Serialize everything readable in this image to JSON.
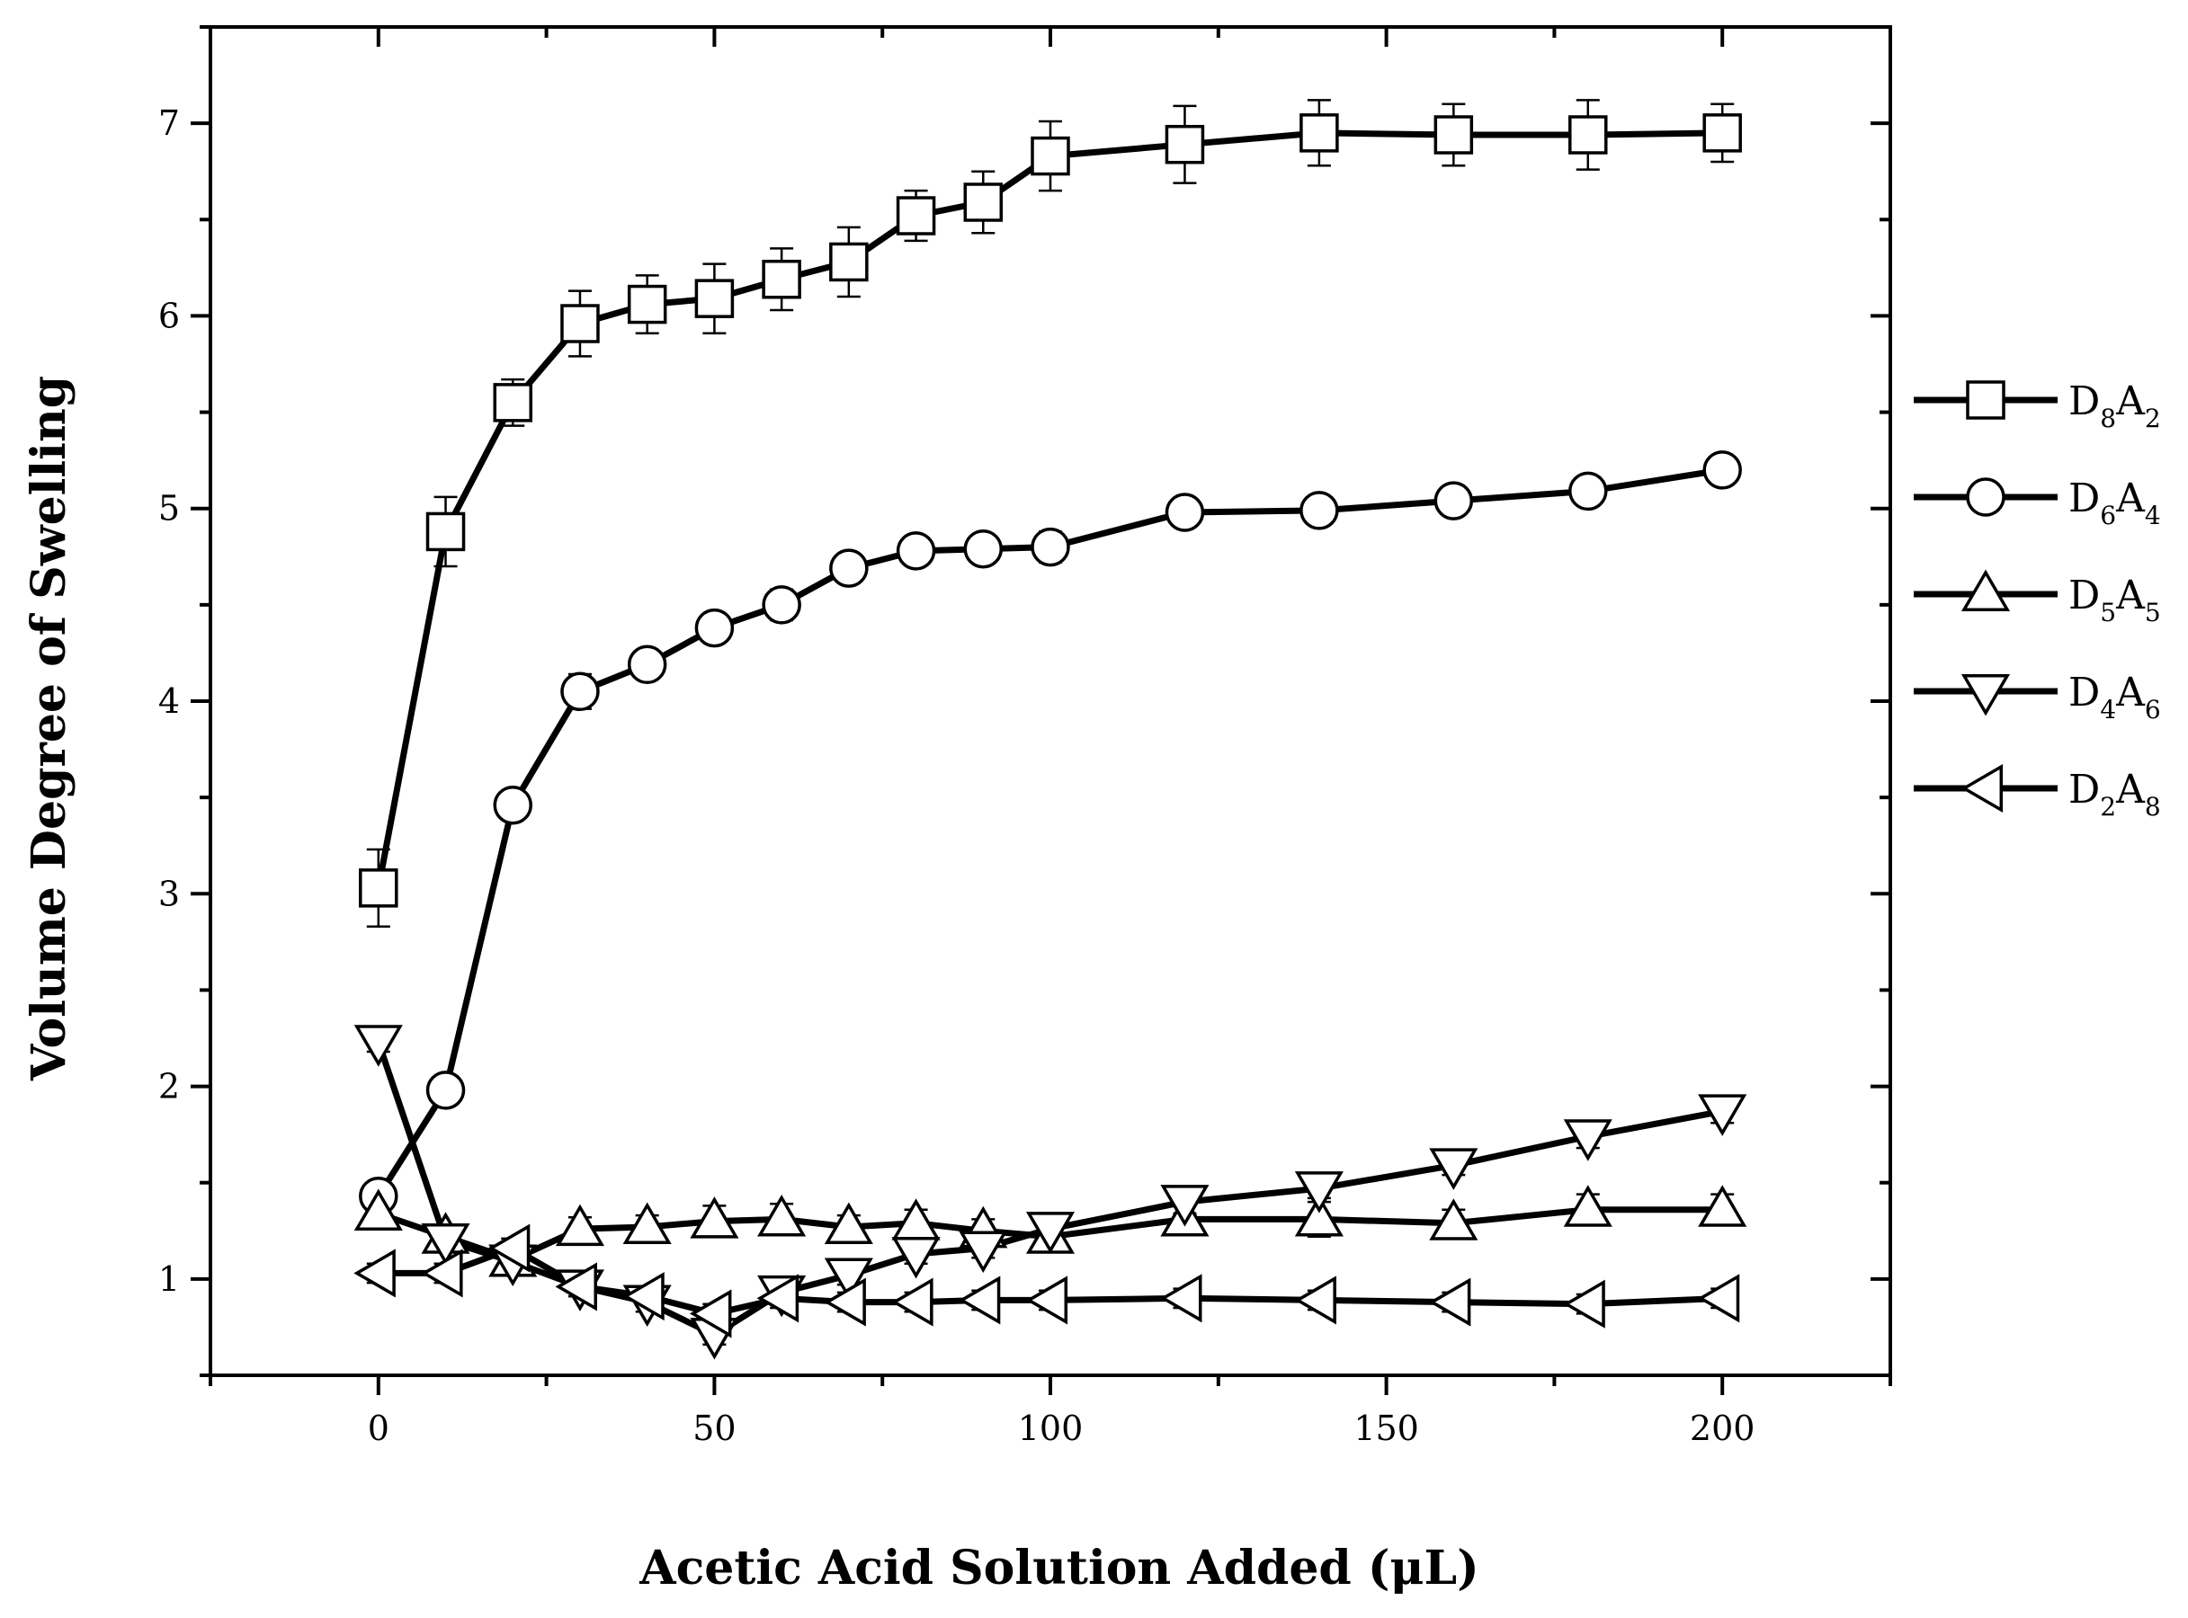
{
  "chart_data": {
    "type": "line",
    "xlabel": "Acetic Acid Solution Added (μL)",
    "ylabel": "Volume Degree of Swelling",
    "xlim": [
      -25,
      225
    ],
    "ylim": [
      0.5,
      7.5
    ],
    "xticks": [
      0,
      50,
      100,
      150,
      200
    ],
    "xtick_labels": [
      "0",
      "50",
      "100",
      "150",
      "200"
    ],
    "yticks": [
      1,
      2,
      3,
      4,
      5,
      6,
      7
    ],
    "ytick_labels": [
      "1",
      "2",
      "3",
      "4",
      "5",
      "6",
      "7"
    ],
    "legend_position": "right",
    "grid": false,
    "x": [
      0,
      10,
      20,
      30,
      40,
      50,
      60,
      70,
      80,
      90,
      100,
      120,
      140,
      160,
      180,
      200
    ],
    "series": [
      {
        "name": "D8A2",
        "legend": {
          "base": "D",
          "sub1": "8",
          "mid": "A",
          "sub2": "2"
        },
        "marker": "square",
        "values": [
          3.03,
          4.88,
          5.55,
          5.96,
          6.06,
          6.09,
          6.19,
          6.28,
          6.52,
          6.59,
          6.83,
          6.89,
          6.95,
          6.94,
          6.94,
          6.95
        ],
        "errors": [
          0.2,
          0.18,
          0.12,
          0.17,
          0.15,
          0.18,
          0.16,
          0.18,
          0.13,
          0.16,
          0.18,
          0.2,
          0.17,
          0.16,
          0.18,
          0.15
        ]
      },
      {
        "name": "D6A4",
        "legend": {
          "base": "D",
          "sub1": "6",
          "mid": "A",
          "sub2": "4"
        },
        "marker": "circle",
        "values": [
          1.43,
          1.98,
          3.46,
          4.05,
          4.19,
          4.38,
          4.5,
          4.69,
          4.78,
          4.79,
          4.8,
          4.98,
          4.99,
          5.04,
          5.09,
          5.2
        ],
        "errors": [
          0.06,
          0.05,
          0.05,
          0.09,
          0.07,
          0.07,
          0.08,
          0.06,
          0.07,
          0.06,
          0.08,
          0.06,
          0.07,
          0.05,
          0.06,
          0.06
        ]
      },
      {
        "name": "D5A5",
        "legend": {
          "base": "D",
          "sub1": "5",
          "mid": "A",
          "sub2": "5"
        },
        "marker": "triangle-up",
        "values": [
          1.34,
          1.22,
          1.1,
          1.26,
          1.27,
          1.3,
          1.31,
          1.27,
          1.29,
          1.25,
          1.22,
          1.31,
          1.31,
          1.29,
          1.36,
          1.36
        ],
        "errors": [
          0.05,
          0.06,
          0.06,
          0.06,
          0.06,
          0.08,
          0.08,
          0.06,
          0.07,
          0.06,
          0.07,
          0.08,
          0.09,
          0.07,
          0.08,
          0.08
        ]
      },
      {
        "name": "D4A6",
        "legend": {
          "base": "D",
          "sub1": "4",
          "mid": "A",
          "sub2": "6"
        },
        "marker": "triangle-down",
        "values": [
          2.23,
          1.2,
          1.09,
          0.96,
          0.88,
          0.71,
          0.93,
          1.02,
          1.13,
          1.16,
          1.26,
          1.4,
          1.47,
          1.59,
          1.74,
          1.87
        ],
        "errors": [
          0.05,
          0.05,
          0.05,
          0.05,
          0.05,
          0.05,
          0.05,
          0.05,
          0.05,
          0.05,
          0.05,
          0.06,
          0.05,
          0.05,
          0.06,
          0.06
        ]
      },
      {
        "name": "D2A8",
        "legend": {
          "base": "D",
          "sub1": "2",
          "mid": "A",
          "sub2": "8"
        },
        "marker": "triangle-left",
        "values": [
          1.03,
          1.03,
          1.16,
          0.96,
          0.91,
          0.82,
          0.9,
          0.88,
          0.88,
          0.89,
          0.89,
          0.9,
          0.89,
          0.88,
          0.87,
          0.9
        ],
        "errors": [
          0.05,
          0.05,
          0.05,
          0.05,
          0.05,
          0.05,
          0.05,
          0.05,
          0.05,
          0.05,
          0.05,
          0.05,
          0.05,
          0.05,
          0.05,
          0.05
        ]
      }
    ]
  }
}
